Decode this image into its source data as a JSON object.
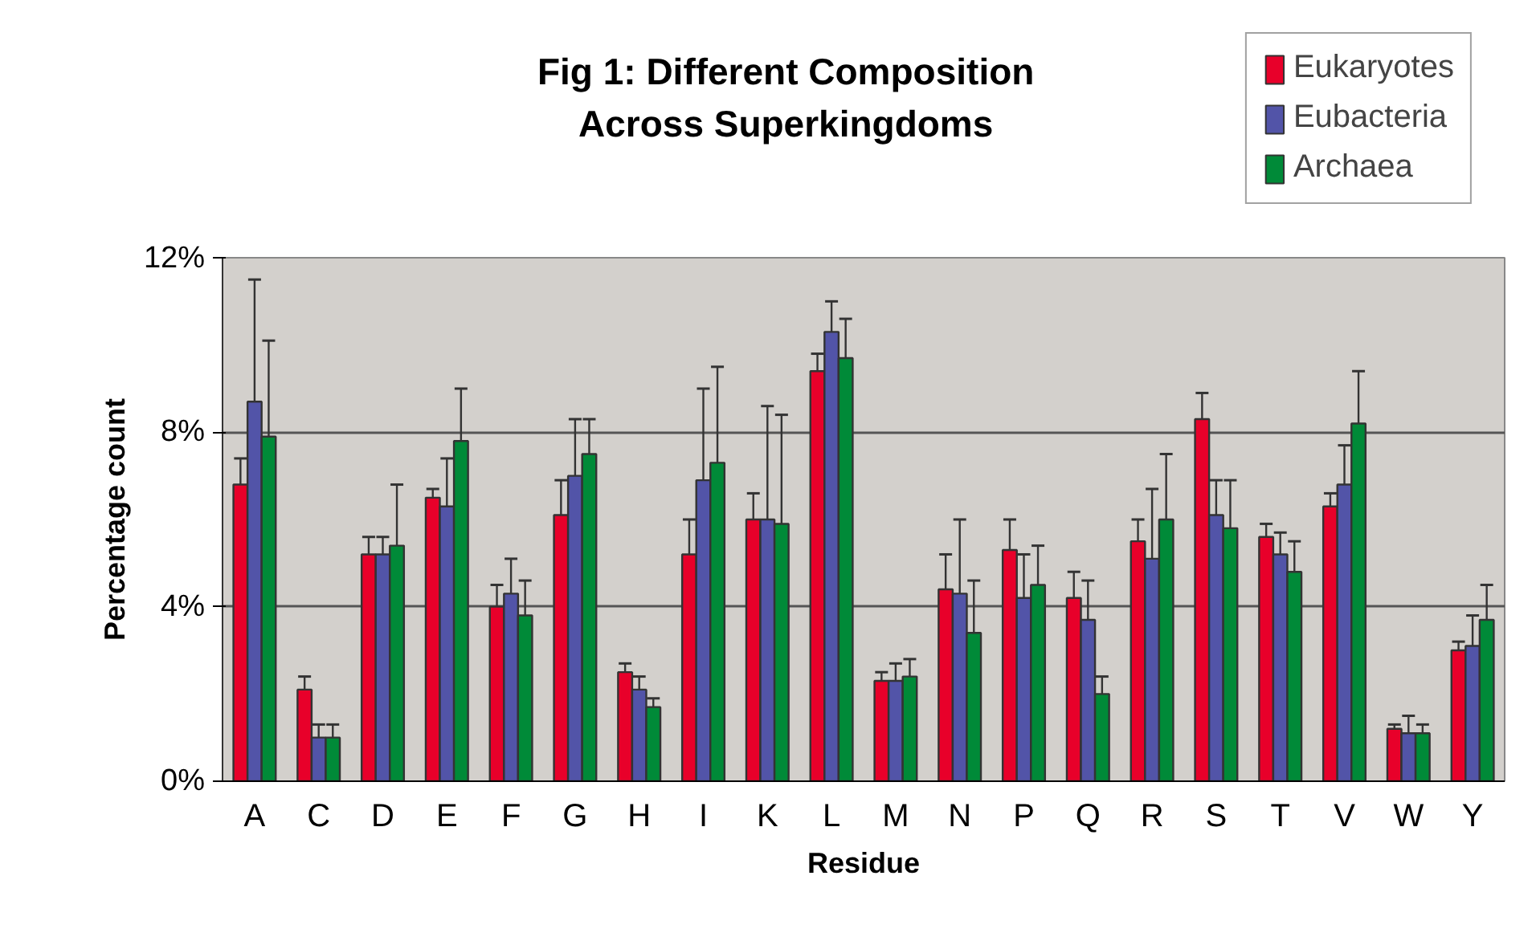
{
  "chart_data": {
    "type": "bar",
    "title": "Fig 1: Different Composition\nAcross Superkingdoms",
    "xlabel": "Residue",
    "ylabel": "Percentage count",
    "categories": [
      "A",
      "C",
      "D",
      "E",
      "F",
      "G",
      "H",
      "I",
      "K",
      "L",
      "M",
      "N",
      "P",
      "Q",
      "R",
      "S",
      "T",
      "V",
      "W",
      "Y"
    ],
    "series": [
      {
        "name": "Eukaryotes",
        "color": "#e8002a",
        "values": [
          6.8,
          2.1,
          5.2,
          6.5,
          4.0,
          6.1,
          2.5,
          5.2,
          6.0,
          9.4,
          2.3,
          4.4,
          5.3,
          4.2,
          5.5,
          8.3,
          5.6,
          6.3,
          1.2,
          3.0
        ],
        "errors": [
          0.6,
          0.3,
          0.4,
          0.2,
          0.5,
          0.8,
          0.2,
          0.8,
          0.6,
          0.4,
          0.2,
          0.8,
          0.7,
          0.6,
          0.5,
          0.6,
          0.3,
          0.3,
          0.1,
          0.2
        ]
      },
      {
        "name": "Eubacteria",
        "color": "#5254a8",
        "values": [
          8.7,
          1.0,
          5.2,
          6.3,
          4.3,
          7.0,
          2.1,
          6.9,
          6.0,
          10.3,
          2.3,
          4.3,
          4.2,
          3.7,
          5.1,
          6.1,
          5.2,
          6.8,
          1.1,
          3.1
        ],
        "errors": [
          2.8,
          0.3,
          0.4,
          1.1,
          0.8,
          1.3,
          0.3,
          2.1,
          2.6,
          0.7,
          0.4,
          1.7,
          1.0,
          0.9,
          1.6,
          0.8,
          0.5,
          0.9,
          0.4,
          0.7
        ]
      },
      {
        "name": "Archaea",
        "color": "#008a38",
        "values": [
          7.9,
          1.0,
          5.4,
          7.8,
          3.8,
          7.5,
          1.7,
          7.3,
          5.9,
          9.7,
          2.4,
          3.4,
          4.5,
          2.0,
          6.0,
          5.8,
          4.8,
          8.2,
          1.1,
          3.7
        ],
        "errors": [
          2.2,
          0.3,
          1.4,
          1.2,
          0.8,
          0.8,
          0.2,
          2.2,
          2.5,
          0.9,
          0.4,
          1.2,
          0.9,
          0.4,
          1.5,
          1.1,
          0.7,
          1.2,
          0.2,
          0.8
        ]
      }
    ],
    "ylim": [
      0,
      12
    ],
    "yticks": [
      {
        "value": 0,
        "label": "0%"
      },
      {
        "value": 4,
        "label": "4%"
      },
      {
        "value": 8,
        "label": "8%"
      },
      {
        "value": 12,
        "label": "12%"
      }
    ],
    "grid": "y",
    "legend": "top right"
  }
}
